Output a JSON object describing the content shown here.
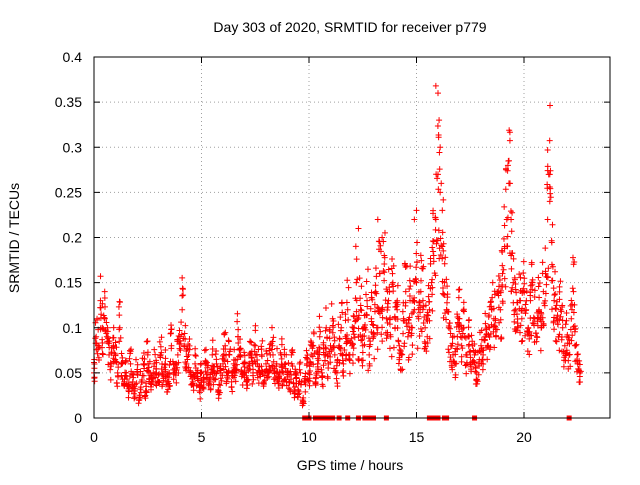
{
  "chart_data": {
    "type": "scatter",
    "title": "Day 303 of 2020, SRMTID for receiver p779",
    "xlabel": "GPS time / hours",
    "ylabel": "SRMTID / TECUs",
    "xlim": [
      0,
      24
    ],
    "ylim": [
      0,
      0.4
    ],
    "x_ticks": [
      0,
      5,
      10,
      15,
      20
    ],
    "x_tick_labels": [
      "0",
      "5",
      "10",
      "15",
      "20"
    ],
    "y_ticks": [
      0,
      0.05,
      0.1,
      0.15,
      0.2,
      0.25,
      0.3,
      0.35,
      0.4
    ],
    "y_tick_labels": [
      "0",
      "0.05",
      "0.1",
      "0.15",
      "0.2",
      "0.25",
      "0.3",
      "0.35",
      "0.4"
    ],
    "grid": true,
    "legend": "none",
    "marker": "plus",
    "series": [
      {
        "name": "SRMTID",
        "color": "#ff0000",
        "description_points": "representative sample of the dense cloud",
        "x": [
          0.0,
          0.1,
          0.2,
          0.3,
          0.4,
          0.5,
          0.6,
          0.7,
          0.8,
          0.9,
          1.0,
          1.1,
          1.2,
          1.3,
          1.4,
          1.5,
          1.6,
          1.7,
          1.8,
          1.9,
          2.0,
          2.1,
          2.2,
          2.3,
          2.4,
          2.5,
          2.6,
          2.7,
          2.8,
          2.9,
          3.0,
          3.1,
          3.2,
          3.3,
          3.4,
          3.5,
          3.6,
          3.7,
          3.8,
          3.9,
          4.0,
          4.1,
          4.2,
          4.3,
          4.4,
          4.5,
          4.6,
          4.7,
          4.8,
          4.9,
          5.0,
          5.1,
          5.2,
          5.3,
          5.4,
          5.5,
          5.6,
          5.7,
          5.8,
          5.9,
          6.0,
          6.1,
          6.2,
          6.3,
          6.4,
          6.5,
          6.6,
          6.7,
          6.8,
          6.9,
          7.0,
          7.1,
          7.2,
          7.3,
          7.4,
          7.5,
          7.6,
          7.7,
          7.8,
          7.9,
          8.0,
          8.1,
          8.2,
          8.3,
          8.4,
          8.5,
          8.6,
          8.7,
          8.8,
          8.9,
          9.0,
          9.1,
          9.2,
          9.3,
          9.4,
          9.5,
          9.6,
          9.7,
          9.8,
          9.9,
          10.0,
          10.1,
          10.2,
          10.3,
          10.4,
          10.5,
          10.6,
          10.7,
          10.8,
          10.9,
          11.0,
          11.1,
          11.2,
          11.3,
          11.4,
          11.5,
          11.6,
          11.7,
          11.8,
          11.9,
          12.0,
          12.1,
          12.2,
          12.3,
          12.4,
          12.5,
          12.6,
          12.7,
          12.8,
          12.9,
          13.0,
          13.1,
          13.2,
          13.3,
          13.4,
          13.5,
          13.6,
          13.7,
          13.8,
          13.9,
          14.0,
          14.1,
          14.2,
          14.3,
          14.4,
          14.5,
          14.6,
          14.7,
          14.8,
          14.9,
          15.0,
          15.1,
          15.2,
          15.3,
          15.4,
          15.5,
          15.6,
          15.7,
          15.8,
          15.9,
          16.0,
          16.1,
          16.2,
          16.3,
          16.4,
          16.5,
          16.6,
          16.7,
          16.8,
          16.9,
          17.0,
          17.1,
          17.2,
          17.3,
          17.4,
          17.5,
          17.6,
          17.7,
          17.8,
          17.9,
          18.0,
          18.1,
          18.2,
          18.3,
          18.4,
          18.5,
          18.6,
          18.7,
          18.8,
          18.9,
          19.0,
          19.1,
          19.2,
          19.3,
          19.4,
          19.5,
          19.6,
          19.7,
          19.8,
          19.9,
          20.0,
          20.1,
          20.2,
          20.3,
          20.4,
          20.5,
          20.6,
          20.7,
          20.8,
          20.9,
          21.0,
          21.1,
          21.2,
          21.3,
          21.4,
          21.5,
          21.6,
          21.7,
          21.8,
          21.9,
          22.0,
          22.1,
          22.2,
          22.3,
          22.4,
          22.5,
          22.6
        ],
        "y": [
          0.05,
          0.09,
          0.08,
          0.13,
          0.1,
          0.11,
          0.09,
          0.07,
          0.06,
          0.08,
          0.07,
          0.05,
          0.1,
          0.06,
          0.04,
          0.05,
          0.03,
          0.06,
          0.04,
          0.03,
          0.05,
          0.02,
          0.04,
          0.06,
          0.03,
          0.07,
          0.05,
          0.04,
          0.06,
          0.05,
          0.04,
          0.07,
          0.05,
          0.06,
          0.04,
          0.05,
          0.08,
          0.06,
          0.05,
          0.07,
          0.09,
          0.12,
          0.08,
          0.06,
          0.07,
          0.05,
          0.04,
          0.06,
          0.05,
          0.03,
          0.05,
          0.04,
          0.06,
          0.05,
          0.04,
          0.07,
          0.05,
          0.06,
          0.03,
          0.05,
          0.06,
          0.08,
          0.05,
          0.07,
          0.04,
          0.06,
          0.05,
          0.09,
          0.07,
          0.05,
          0.06,
          0.04,
          0.06,
          0.07,
          0.05,
          0.08,
          0.06,
          0.05,
          0.07,
          0.04,
          0.06,
          0.05,
          0.07,
          0.08,
          0.05,
          0.06,
          0.04,
          0.07,
          0.05,
          0.06,
          0.05,
          0.04,
          0.06,
          0.03,
          0.05,
          0.03,
          0.05,
          0.02,
          0.04,
          0.06,
          0.05,
          0.07,
          0.08,
          0.04,
          0.06,
          0.09,
          0.05,
          0.07,
          0.1,
          0.06,
          0.08,
          0.11,
          0.07,
          0.05,
          0.08,
          0.1,
          0.06,
          0.09,
          0.12,
          0.07,
          0.08,
          0.1,
          0.15,
          0.09,
          0.12,
          0.08,
          0.1,
          0.13,
          0.07,
          0.11,
          0.09,
          0.14,
          0.1,
          0.16,
          0.12,
          0.18,
          0.11,
          0.13,
          0.09,
          0.15,
          0.1,
          0.12,
          0.08,
          0.07,
          0.11,
          0.14,
          0.09,
          0.13,
          0.1,
          0.12,
          0.15,
          0.11,
          0.14,
          0.13,
          0.1,
          0.09,
          0.12,
          0.15,
          0.18,
          0.22,
          0.27,
          0.25,
          0.19,
          0.15,
          0.12,
          0.1,
          0.08,
          0.07,
          0.06,
          0.09,
          0.11,
          0.08,
          0.1,
          0.07,
          0.09,
          0.06,
          0.08,
          0.07,
          0.05,
          0.06,
          0.08,
          0.07,
          0.09,
          0.08,
          0.1,
          0.12,
          0.11,
          0.09,
          0.14,
          0.12,
          0.16,
          0.19,
          0.22,
          0.26,
          0.18,
          0.15,
          0.12,
          0.1,
          0.13,
          0.11,
          0.14,
          0.12,
          0.1,
          0.13,
          0.15,
          0.11,
          0.09,
          0.12,
          0.1,
          0.14,
          0.16,
          0.22,
          0.27,
          0.17,
          0.13,
          0.11,
          0.09,
          0.12,
          0.1,
          0.08,
          0.09,
          0.07,
          0.11,
          0.14,
          0.08,
          0.06,
          0.05
        ]
      }
    ],
    "peaks": {
      "x": [
        15.9,
        16.0,
        16.05,
        16.1,
        16.15,
        16.2,
        19.3,
        19.35,
        19.4,
        21.1,
        21.15,
        21.2,
        14.9,
        15.0,
        12.3,
        13.2,
        13.4
      ],
      "y": [
        0.368,
        0.36,
        0.33,
        0.3,
        0.26,
        0.23,
        0.285,
        0.26,
        0.22,
        0.297,
        0.27,
        0.24,
        0.22,
        0.23,
        0.21,
        0.22,
        0.2
      ]
    },
    "zero_markers_x": [
      9.8,
      10.0,
      10.3,
      10.5,
      10.7,
      10.9,
      11.1,
      11.4,
      11.8,
      12.3,
      12.6,
      12.8,
      13.0,
      13.6,
      15.6,
      15.7,
      15.8,
      15.9,
      16.0,
      16.3,
      16.4,
      17.7,
      22.1
    ]
  }
}
